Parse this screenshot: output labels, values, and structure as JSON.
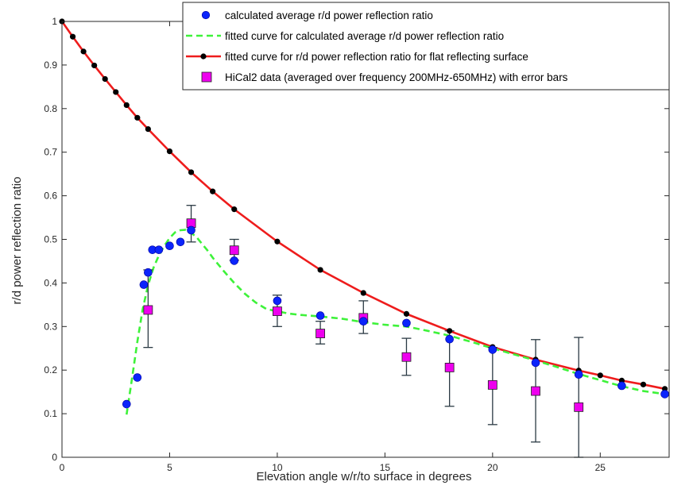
{
  "colors": {
    "calculated": "#0b24fb",
    "calculated_stroke": "#0000a0",
    "fitted_calc": "#3ef23a",
    "flat_line": "#ee1c1c",
    "flat_marker": "#000000",
    "hical_fill": "#ee00ee",
    "hical_stroke": "#222222",
    "errorbar": "#2b3a44"
  },
  "chart_data": {
    "type": "scatter",
    "xlabel": "Elevation angle w/r/to surface in degrees",
    "ylabel": "r/d power reflection ratio",
    "xlim": [
      0,
      28.2
    ],
    "ylim": [
      0,
      1
    ],
    "xticks": [
      0,
      5,
      10,
      15,
      20,
      25
    ],
    "yticks": [
      0,
      0.1,
      0.2,
      0.3,
      0.4,
      0.5,
      0.6,
      0.7,
      0.8,
      0.9,
      1
    ],
    "xtick_labels": [
      "0",
      "5",
      "10",
      "15",
      "20",
      "25"
    ],
    "ytick_labels": [
      "0",
      "0.1",
      "0.2",
      "0.3",
      "0.4",
      "0.5",
      "0.6",
      "0.7",
      "0.8",
      "0.9",
      "1"
    ],
    "grid": false,
    "legend_position": "top-right",
    "series": [
      {
        "name": "calculated average r/d power reflection ratio",
        "kind": "markers",
        "marker": "circle",
        "x": [
          3,
          3.5,
          3.8,
          4,
          4.2,
          4.5,
          5,
          5.5,
          6,
          8,
          10,
          12,
          14,
          16,
          18,
          20,
          22,
          24,
          26,
          28
        ],
        "y": [
          0.122,
          0.183,
          0.396,
          0.424,
          0.476,
          0.476,
          0.485,
          0.494,
          0.521,
          0.451,
          0.359,
          0.325,
          0.312,
          0.308,
          0.271,
          0.247,
          0.217,
          0.19,
          0.164,
          0.145
        ]
      },
      {
        "name": "fitted curve for calculated average r/d power reflection ratio",
        "kind": "dashed-line",
        "x": [
          3,
          3.25,
          3.5,
          3.75,
          4,
          4.25,
          4.5,
          4.75,
          5,
          5.25,
          5.5,
          5.75,
          6,
          6.25,
          6.5,
          6.75,
          7,
          7.5,
          8,
          8.5,
          9,
          9.5,
          10,
          10.5,
          11,
          11.5,
          12,
          13,
          14,
          15,
          16,
          17,
          18,
          19,
          20,
          21,
          22,
          23,
          24,
          25,
          26,
          27,
          28
        ],
        "y": [
          0.098,
          0.18,
          0.265,
          0.34,
          0.395,
          0.435,
          0.463,
          0.485,
          0.503,
          0.516,
          0.521,
          0.522,
          0.515,
          0.505,
          0.49,
          0.475,
          0.458,
          0.428,
          0.4,
          0.375,
          0.355,
          0.34,
          0.335,
          0.33,
          0.327,
          0.325,
          0.323,
          0.318,
          0.31,
          0.304,
          0.3,
          0.29,
          0.279,
          0.265,
          0.25,
          0.236,
          0.222,
          0.207,
          0.191,
          0.177,
          0.163,
          0.152,
          0.145
        ]
      },
      {
        "name": "fitted curve for r/d power reflection ratio for flat reflecting surface",
        "kind": "line-markers",
        "marker": "circle",
        "x": [
          0,
          0.5,
          1,
          1.5,
          2,
          2.5,
          3,
          3.5,
          4,
          5,
          6,
          7,
          8,
          10,
          12,
          14,
          16,
          18,
          20,
          22,
          24,
          25,
          26,
          27,
          28
        ],
        "y": [
          1.0,
          0.965,
          0.931,
          0.899,
          0.868,
          0.838,
          0.808,
          0.779,
          0.753,
          0.702,
          0.654,
          0.61,
          0.569,
          0.495,
          0.43,
          0.377,
          0.329,
          0.29,
          0.253,
          0.224,
          0.199,
          0.188,
          0.176,
          0.167,
          0.157
        ]
      },
      {
        "name": "HiCal2 data (averaged over frequency 200MHz-650MHz) with error bars",
        "kind": "markers-errorbars",
        "marker": "square",
        "x": [
          4,
          6,
          8,
          10,
          12,
          14,
          16,
          18,
          20,
          22,
          24
        ],
        "y": [
          0.338,
          0.537,
          0.475,
          0.335,
          0.284,
          0.32,
          0.23,
          0.206,
          0.166,
          0.152,
          0.115
        ],
        "y_lower": [
          0.252,
          0.494,
          0.452,
          0.3,
          0.26,
          0.284,
          0.188,
          0.117,
          0.075,
          0.035,
          0.0
        ],
        "y_upper": [
          0.43,
          0.578,
          0.5,
          0.372,
          0.312,
          0.359,
          0.273,
          0.29,
          0.252,
          0.27,
          0.275
        ]
      }
    ]
  }
}
